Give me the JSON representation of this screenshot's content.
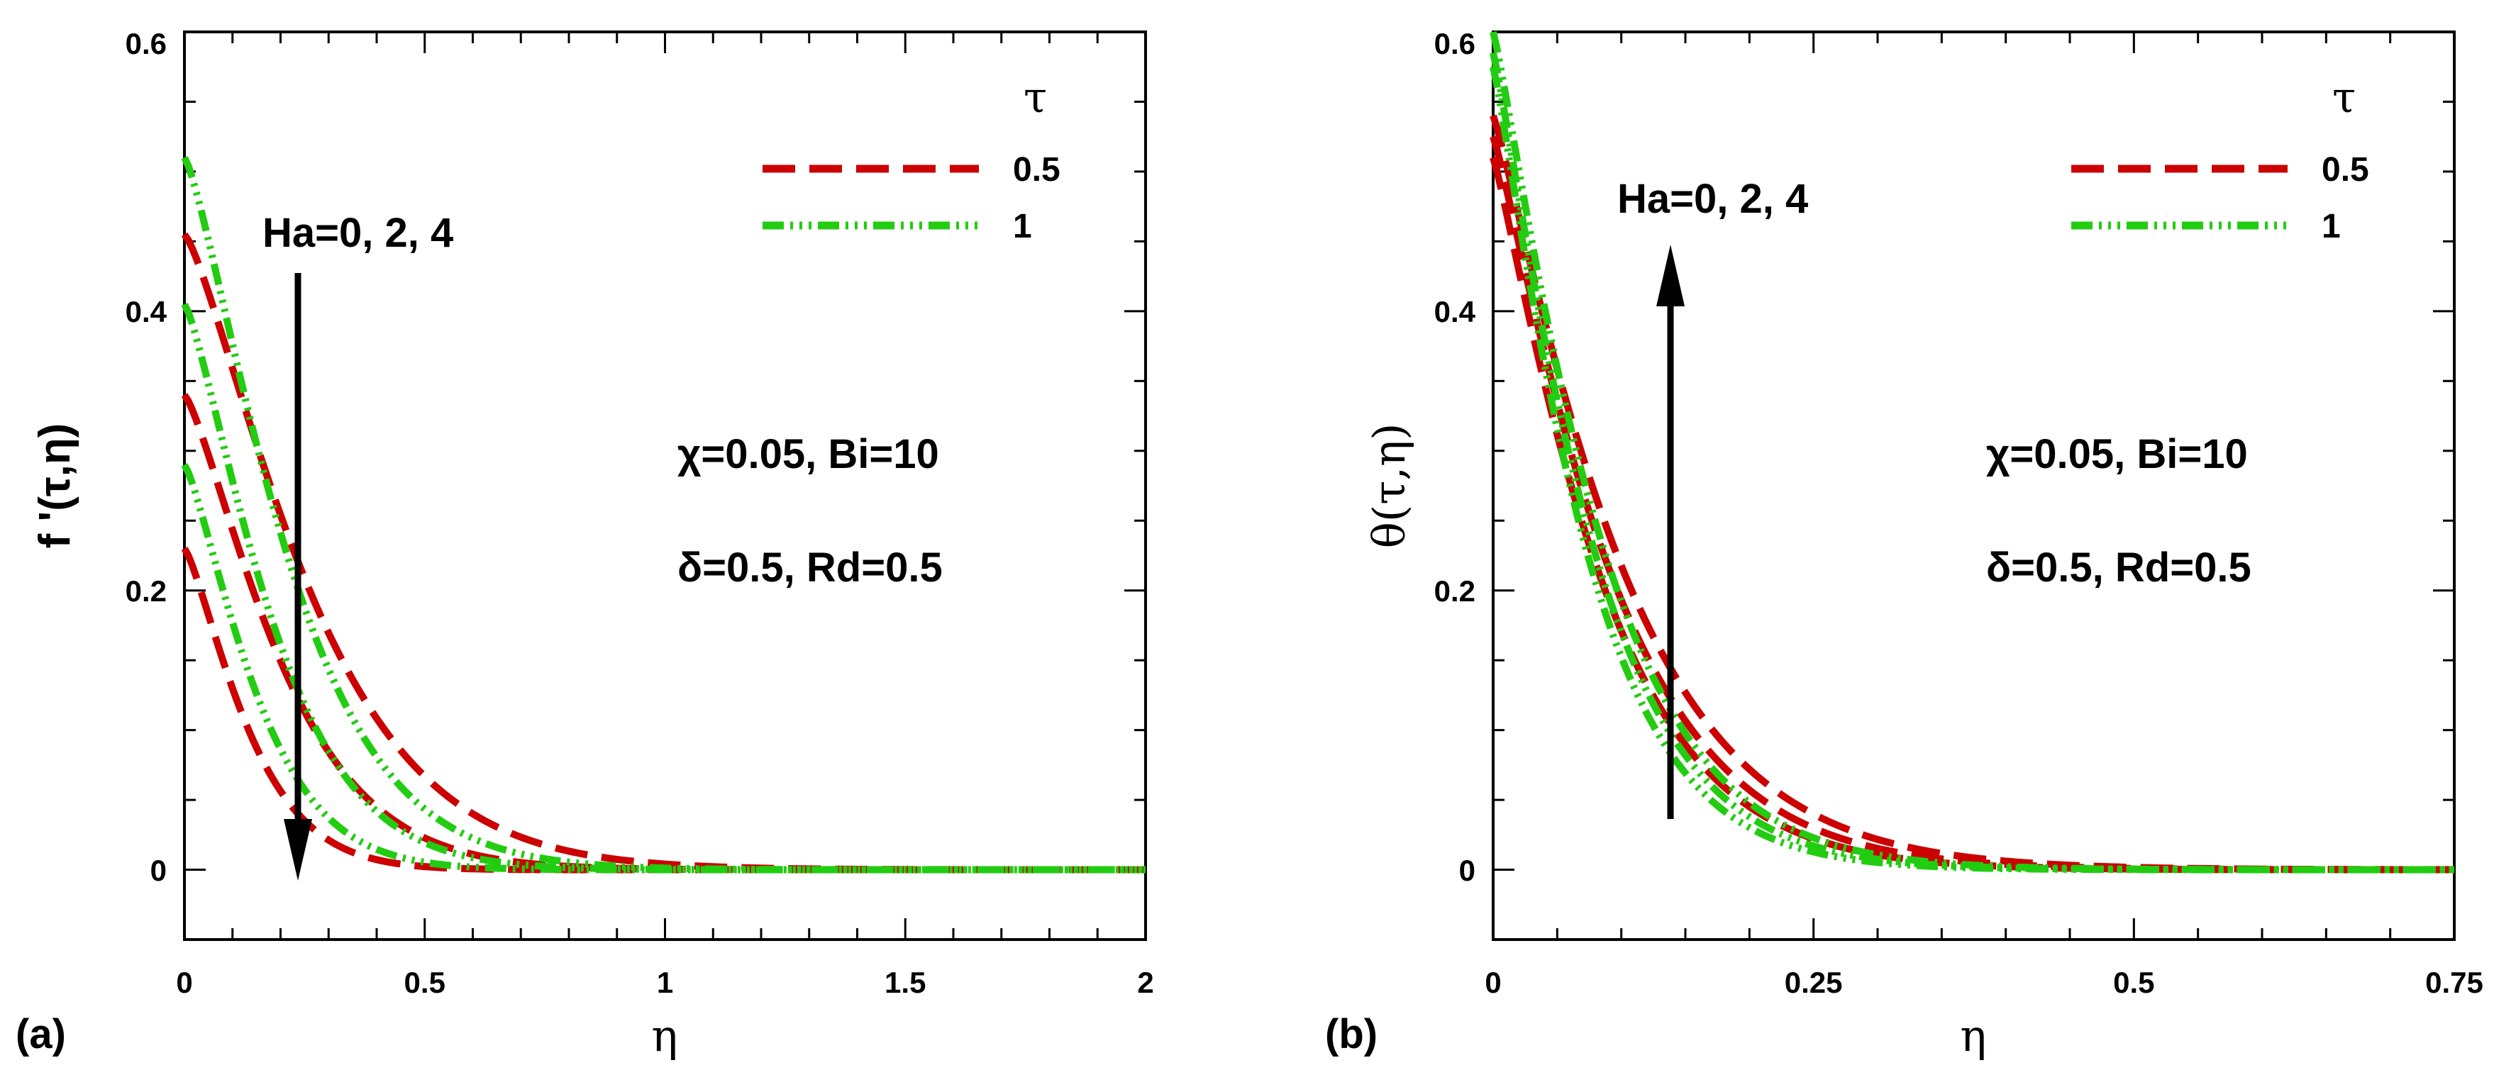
{
  "chart_data": [
    {
      "type": "line",
      "panel_label": "(a)",
      "xlabel": "η",
      "ylabel": "f '(τ,η)",
      "xlim": [
        0,
        2
      ],
      "ylim": [
        -0.05,
        0.6
      ],
      "xticks": [
        0,
        0.5,
        1,
        1.5,
        2
      ],
      "xtick_labels": [
        "0",
        "0.5",
        "1",
        "1.5",
        "2"
      ],
      "yticks": [
        0,
        0.2,
        0.4,
        0.6
      ],
      "ytick_labels": [
        "0",
        "0.2",
        "0.4",
        "0.6"
      ],
      "legend": {
        "title": "τ",
        "position": "top-right",
        "entries": [
          "0.5",
          "1"
        ]
      },
      "annotations": [
        "Ha=0, 2, 4",
        "χ=0.05, Bi=10",
        "δ=0.5, Rd=0.5"
      ],
      "arrow": {
        "from": [
          0.24,
          0.43
        ],
        "to": [
          0.24,
          -0.01
        ],
        "label": "Ha=0, 2, 4"
      },
      "series": [
        {
          "name": "τ=0.5, Ha=0",
          "style": "dashed",
          "color": "#cc0000",
          "model": {
            "A": 0.455,
            "k": 3.3,
            "p": 1.3
          }
        },
        {
          "name": "τ=0.5, Ha=2",
          "style": "dashed",
          "color": "#cc0000",
          "model": {
            "A": 0.34,
            "k": 4.3,
            "p": 1.3
          }
        },
        {
          "name": "τ=0.5, Ha=4",
          "style": "dashed",
          "color": "#cc0000",
          "model": {
            "A": 0.23,
            "k": 6.5,
            "p": 1.3
          }
        },
        {
          "name": "τ=1, Ha=0",
          "style": "dashdot",
          "color": "#22cc11",
          "model": {
            "A": 0.51,
            "k": 4.0,
            "p": 1.3
          }
        },
        {
          "name": "τ=1, Ha=2",
          "style": "dashdot",
          "color": "#22cc11",
          "model": {
            "A": 0.405,
            "k": 4.7,
            "p": 1.3
          }
        },
        {
          "name": "τ=1, Ha=4",
          "style": "dashdot",
          "color": "#22cc11",
          "model": {
            "A": 0.29,
            "k": 5.8,
            "p": 1.3
          }
        }
      ]
    },
    {
      "type": "line",
      "panel_label": "(b)",
      "xlabel": "η",
      "ylabel": "θ(τ,η)",
      "xlim": [
        0,
        0.75
      ],
      "ylim": [
        -0.05,
        0.6
      ],
      "xticks": [
        0,
        0.25,
        0.5,
        0.75
      ],
      "xtick_labels": [
        "0",
        "0.25",
        "0.5",
        "0.75"
      ],
      "yticks": [
        0,
        0.2,
        0.4,
        0.6
      ],
      "ytick_labels": [
        "0",
        "0.2",
        "0.4",
        "0.6"
      ],
      "legend": {
        "title": "τ",
        "position": "top-right",
        "entries": [
          "0.5",
          "1"
        ]
      },
      "annotations": [
        "Ha=0, 2, 4",
        "χ=0.05, Bi=10",
        "δ=0.5, Rd=0.5"
      ],
      "arrow": {
        "from": [
          0.14,
          0.04
        ],
        "to": [
          0.14,
          0.46
        ],
        "label": "Ha=0, 2, 4"
      },
      "series": [
        {
          "name": "τ=0.5, Ha=0",
          "style": "dashed",
          "color": "#cc0000",
          "model": {
            "A": 0.51,
            "k": 10.8,
            "p": 1.15
          }
        },
        {
          "name": "τ=0.5, Ha=2",
          "style": "dashed",
          "color": "#cc0000",
          "model": {
            "A": 0.525,
            "k": 10.0,
            "p": 1.15
          }
        },
        {
          "name": "τ=0.5, Ha=4",
          "style": "dashed",
          "color": "#cc0000",
          "model": {
            "A": 0.54,
            "k": 9.2,
            "p": 1.15
          }
        },
        {
          "name": "τ=1, Ha=0",
          "style": "dashdot",
          "color": "#22cc11",
          "model": {
            "A": 0.575,
            "k": 12.8,
            "p": 1.15
          }
        },
        {
          "name": "τ=1, Ha=2",
          "style": "dashdot",
          "color": "#22cc11",
          "model": {
            "A": 0.585,
            "k": 12.0,
            "p": 1.15
          }
        },
        {
          "name": "τ=1, Ha=4",
          "style": "dashdot",
          "color": "#22cc11",
          "model": {
            "A": 0.6,
            "k": 11.2,
            "p": 1.15
          }
        }
      ]
    }
  ]
}
